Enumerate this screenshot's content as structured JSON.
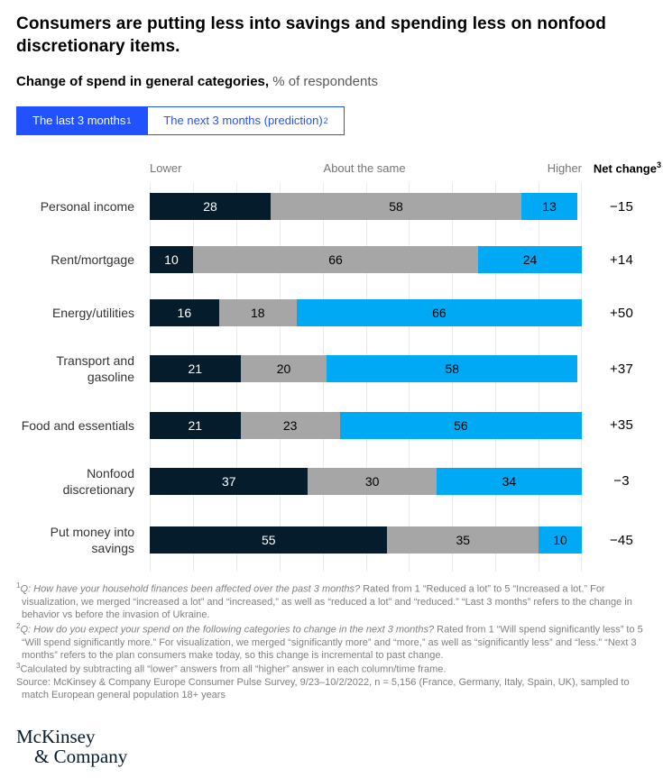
{
  "header": {
    "title": "Consumers are putting less into savings and spending less on nonfood discretionary items.",
    "subtitle_bold": "Change of spend in general categories,",
    "subtitle_rest": " % of respondents"
  },
  "tabs": [
    {
      "label": "The last 3 months",
      "sup": "1",
      "active": true
    },
    {
      "label": "The next 3 months (prediction)",
      "sup": "2",
      "active": false
    }
  ],
  "colors": {
    "tab_blue": "#2251FF",
    "lower_navy": "#051C2C",
    "same_gray": "#A6A6A6",
    "higher_cyan": "#00A9F4"
  },
  "chart_data": {
    "type": "bar",
    "orientation": "horizontal",
    "stacked": true,
    "unit": "% of respondents",
    "xlim": [
      0,
      100
    ],
    "grid": "vertical, every 10%",
    "legend_position": "column headers above bars",
    "series_names": [
      "Lower",
      "About the same",
      "Higher"
    ],
    "axis_labels": {
      "lower": "Lower",
      "same": "About the same",
      "higher": "Higher"
    },
    "net_change_header": {
      "label": "Net change",
      "sup": "3"
    },
    "rows": [
      {
        "category": "Personal income",
        "lower": 28,
        "same": 58,
        "higher": 13,
        "net_change": "−15"
      },
      {
        "category": "Rent/mortgage",
        "lower": 10,
        "same": 66,
        "higher": 24,
        "net_change": "+14"
      },
      {
        "category": "Energy/utilities",
        "lower": 16,
        "same": 18,
        "higher": 66,
        "net_change": "+50"
      },
      {
        "category": "Transport and gasoline",
        "lower": 21,
        "same": 20,
        "higher": 58,
        "net_change": "+37"
      },
      {
        "category": "Food and essentials",
        "lower": 21,
        "same": 23,
        "higher": 56,
        "net_change": "+35"
      },
      {
        "category": "Nonfood discretionary",
        "lower": 37,
        "same": 30,
        "higher": 34,
        "net_change": "−3"
      },
      {
        "category": "Put money into savings",
        "lower": 55,
        "same": 35,
        "higher": 10,
        "net_change": "−45"
      }
    ]
  },
  "footnotes": [
    {
      "marker": "1",
      "segments": [
        {
          "text": "Q: How have your household finances been affected over the past 3 months?",
          "italic": true
        },
        {
          "text": " Rated from 1 “Reduced a lot” to 5 “Increased a lot.” For visualization, we merged “increased a lot” and “increased,” as well as “reduced a lot” and “reduced.” “Last 3 months” refers to the change in behavior vs before the invasion of Ukraine.",
          "italic": false
        }
      ]
    },
    {
      "marker": "2",
      "segments": [
        {
          "text": "Q: How do you expect your spend on the following categories to change in the next 3 months?",
          "italic": true
        },
        {
          "text": " Rated from 1 “Will spend significantly less” to 5 “Will spend significantly more.” For visualization, we merged “significantly more” and “more,” as well as “significantly less” and “less.” “Next 3 months” refers to the plan consumers make today, so this change is incremental to past change.",
          "italic": false
        }
      ]
    },
    {
      "marker": "3",
      "segments": [
        {
          "text": "Calculated by subtracting all “lower” answers from all “higher” answer in each column/time frame.",
          "italic": false
        }
      ]
    },
    {
      "marker": "",
      "segments": [
        {
          "text": "Source: McKinsey & Company Europe Consumer Pulse Survey, 9/23–10/2/2022, n = 5,156 (France, Germany, Italy, Spain, UK), sampled to match European general population 18+ years",
          "italic": false
        }
      ]
    }
  ],
  "logo": {
    "line1": "McKinsey",
    "line2": "& Company"
  }
}
